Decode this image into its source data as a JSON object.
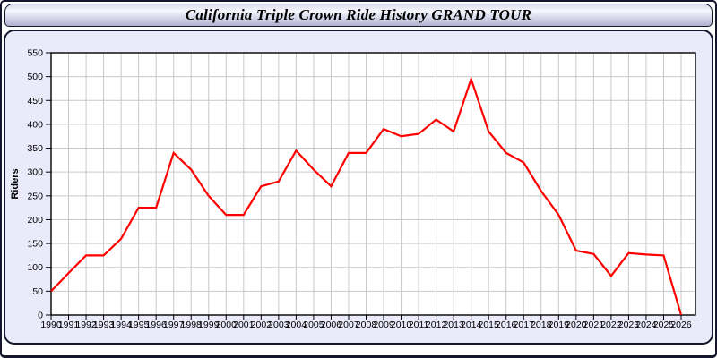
{
  "header": {
    "title": "California Triple Crown Ride History GRAND TOUR"
  },
  "colors": {
    "accent_line": "#ff0000",
    "panel_background": "#eaeafb",
    "plot_background": "#ffffff",
    "gridline": "#c9c9c9",
    "axis": "#000000",
    "text": "#000000",
    "frame_border": "#15152c"
  },
  "chart_data": {
    "type": "line",
    "title": "California Triple Crown Ride History GRAND TOUR",
    "xlabel": "",
    "ylabel": "Riders",
    "x": [
      1990,
      1991,
      1992,
      1993,
      1994,
      1995,
      1996,
      1997,
      1998,
      1999,
      2000,
      2001,
      2002,
      2003,
      2004,
      2005,
      2006,
      2007,
      2008,
      2009,
      2010,
      2011,
      2012,
      2013,
      2014,
      2015,
      2016,
      2017,
      2018,
      2019,
      2020,
      2021,
      2022,
      2023,
      2024,
      2025,
      2026
    ],
    "series": [
      {
        "name": "Grand Tour riders",
        "color": "#ff0000",
        "values": [
          50,
          88,
          125,
          125,
          160,
          225,
          225,
          340,
          305,
          250,
          210,
          210,
          270,
          280,
          345,
          305,
          270,
          340,
          340,
          390,
          375,
          380,
          410,
          385,
          495,
          385,
          340,
          320,
          260,
          210,
          135,
          128,
          82,
          130,
          127,
          125,
          0
        ]
      }
    ],
    "ylim": [
      0,
      550
    ],
    "yticks": [
      0,
      50,
      100,
      150,
      200,
      250,
      300,
      350,
      400,
      450,
      500,
      550
    ],
    "grid": true,
    "legend_position": "none"
  }
}
